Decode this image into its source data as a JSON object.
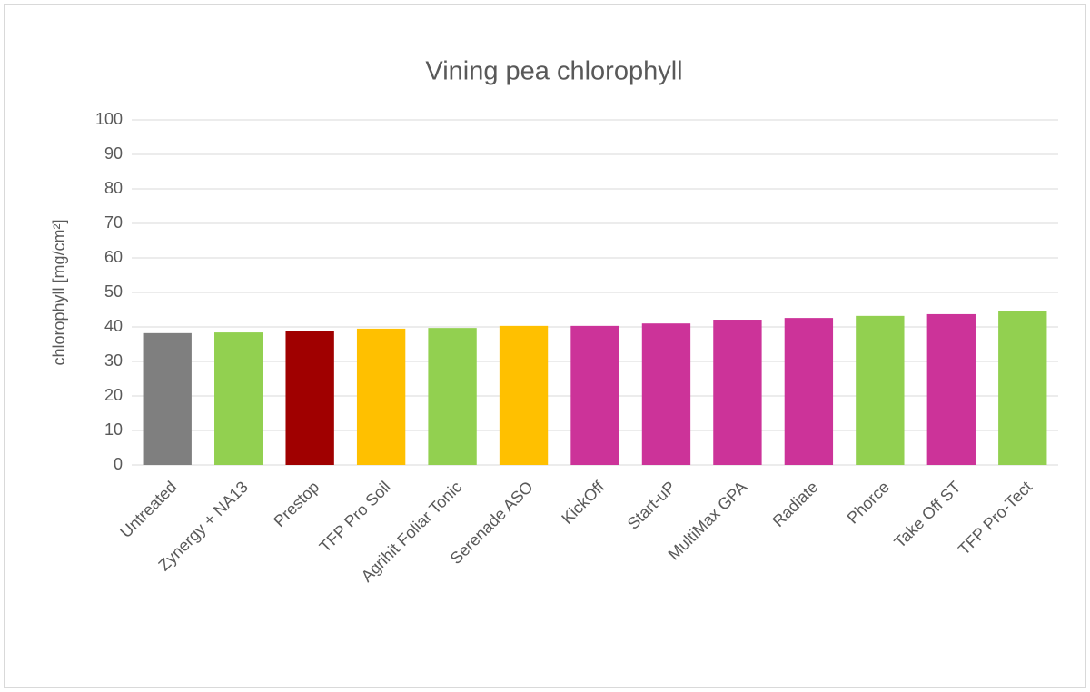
{
  "chart_data": {
    "type": "bar",
    "title": "Vining pea chlorophyll",
    "y_label": "chlorophyll [mg/cm²]",
    "categories": [
      "Untreated",
      "Zynergy + NA13",
      "Prestop",
      "TFP Pro Soil",
      "Agrihit Foliar Tonic",
      "Serenade ASO",
      "KickOff",
      "Start-uP",
      "MultiMax GPA",
      "Radiate",
      "Phorce",
      "Take Off ST",
      "TFP Pro-Tect"
    ],
    "values": [
      38.2,
      38.4,
      38.9,
      39.5,
      39.7,
      40.3,
      40.3,
      41.0,
      42.1,
      42.6,
      43.2,
      43.7,
      44.7
    ],
    "colors": [
      "#7f7f7f",
      "#92d050",
      "#a00000",
      "#ffc000",
      "#92d050",
      "#ffc000",
      "#cc3399",
      "#cc3399",
      "#cc3399",
      "#cc3399",
      "#92d050",
      "#cc3399",
      "#92d050"
    ],
    "ylim": [
      0,
      100
    ],
    "yticks": [
      0,
      10,
      20,
      30,
      40,
      50,
      60,
      70,
      80,
      90,
      100
    ],
    "grid": true
  }
}
